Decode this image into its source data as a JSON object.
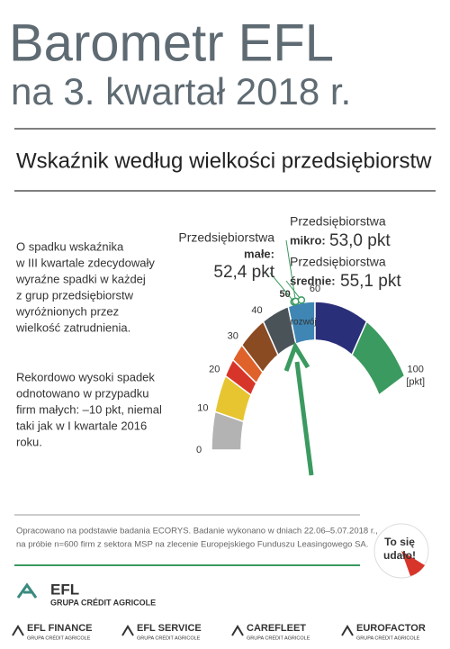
{
  "header": {
    "title": "Barometr EFL",
    "subtitle": "na 3. kwartał 2018 r."
  },
  "section_title": "Wskaźnik według wielkości przedsiębiorstw",
  "description": [
    [
      "O spadku wskaźnika",
      "w III kwartale zdecydowały",
      "wyraźne spadki w każdej",
      "z grup przedsiębiorstw",
      "wyróżnionych przez",
      "wielkość zatrudnienia."
    ],
    [
      "Rekordowo wysoki spadek",
      "odnotowano w przypadku",
      "firm małych: –10 pkt, niemal",
      "taki jak w I kwartale 2016",
      "roku."
    ]
  ],
  "chart_data": {
    "type": "gauge",
    "range": [
      0,
      100
    ],
    "ticks": [
      0,
      10,
      20,
      30,
      40,
      50,
      60,
      100
    ],
    "unit": "[pkt]",
    "segment_label": "rozwój",
    "segments": [
      {
        "from": 0,
        "to": 10,
        "color": "#b3b3b3"
      },
      {
        "from": 10,
        "to": 20,
        "color": "#e6c531"
      },
      {
        "from": 20,
        "to": 25,
        "color": "#d8352a"
      },
      {
        "from": 25,
        "to": 30,
        "color": "#e0622b"
      },
      {
        "from": 30,
        "to": 40,
        "color": "#8a4a22"
      },
      {
        "from": 40,
        "to": 50,
        "color": "#4a5358"
      },
      {
        "from": 50,
        "to": 60,
        "color": "#3f86b4"
      },
      {
        "from": 60,
        "to": 80,
        "color": "#2a2f7a"
      },
      {
        "from": 80,
        "to": 100,
        "color": "#3a9a5f"
      }
    ],
    "series": [
      {
        "name": "Przedsiębiorstwa",
        "group": "małe:",
        "values": [
          52.4
        ],
        "value_labels": [
          "52,4 pkt"
        ],
        "color": "#3a9a5f"
      },
      {
        "name": "Przedsiębiorstwa",
        "group": "mikro:",
        "values": [
          53.0
        ],
        "value_labels": [
          "53,0 pkt"
        ],
        "color": "#3a9a5f"
      },
      {
        "name": "Przedsiębiorstwa",
        "group": "średnie:",
        "values": [
          55.1
        ],
        "value_labels": [
          "55,1 pkt"
        ],
        "color": "#3a9a5f"
      }
    ]
  },
  "footer": {
    "note": [
      "Opracowano na podstawie badania ECORYS. Badanie wykonano w dniach 22.06–5.07.2018 r.,",
      "na próbie n=600 firm z sektora MSP na zlecenie Europejskiego Funduszu Leasingowego SA."
    ],
    "badge": [
      "To się",
      "udało!"
    ],
    "logo": {
      "name": "EFL",
      "group": "GRUPA CRÉDIT AGRICOLE"
    },
    "brands": [
      {
        "name": "EFL FINANCE",
        "group": "GRUPA CRÉDIT AGRICOLE"
      },
      {
        "name": "EFL SERVICE",
        "group": "GRUPA CRÉDIT AGRICOLE"
      },
      {
        "name": "CAREFLEET",
        "group": "GRUPA CRÉDIT AGRICOLE"
      },
      {
        "name": "EUROFACTOR",
        "group": "GRUPA CRÉDIT AGRICOLE"
      }
    ]
  }
}
